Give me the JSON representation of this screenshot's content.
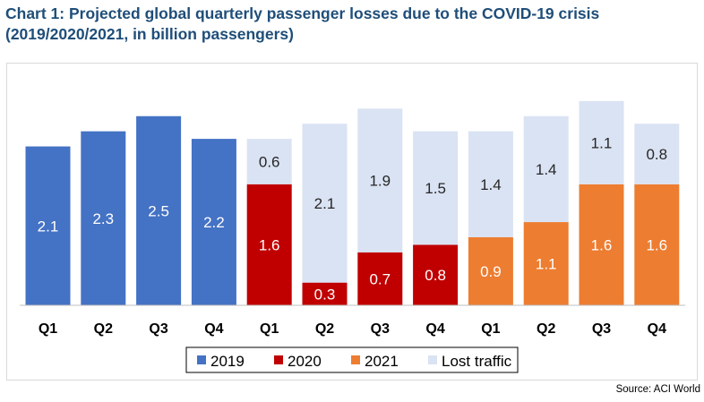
{
  "title_line1": "Chart 1: Projected global quarterly passenger losses due to the COVID-19 crisis",
  "title_line2": "(2019/2020/2021, in billion passengers)",
  "source": "Source: ACI World",
  "chart_data": {
    "type": "bar",
    "stacked": true,
    "categories": [
      "Q1",
      "Q2",
      "Q3",
      "Q4",
      "Q1",
      "Q2",
      "Q3",
      "Q4",
      "Q1",
      "Q2",
      "Q3",
      "Q4"
    ],
    "series": [
      {
        "name": "2019",
        "color": "#4472c4",
        "values": [
          2.1,
          2.3,
          2.5,
          2.2,
          null,
          null,
          null,
          null,
          null,
          null,
          null,
          null
        ]
      },
      {
        "name": "2020",
        "color": "#c00000",
        "values": [
          null,
          null,
          null,
          null,
          1.6,
          0.3,
          0.7,
          0.8,
          null,
          null,
          null,
          null
        ]
      },
      {
        "name": "2021",
        "color": "#ed7d31",
        "values": [
          null,
          null,
          null,
          null,
          null,
          null,
          null,
          null,
          0.9,
          1.1,
          1.6,
          1.6
        ]
      },
      {
        "name": "Lost traffic",
        "color": "#dae3f3",
        "values": [
          null,
          null,
          null,
          null,
          0.6,
          2.1,
          1.9,
          1.5,
          1.4,
          1.4,
          1.1,
          0.8
        ]
      }
    ],
    "ylim": [
      0,
      3
    ],
    "grid": false,
    "legend_position": "bottom"
  }
}
